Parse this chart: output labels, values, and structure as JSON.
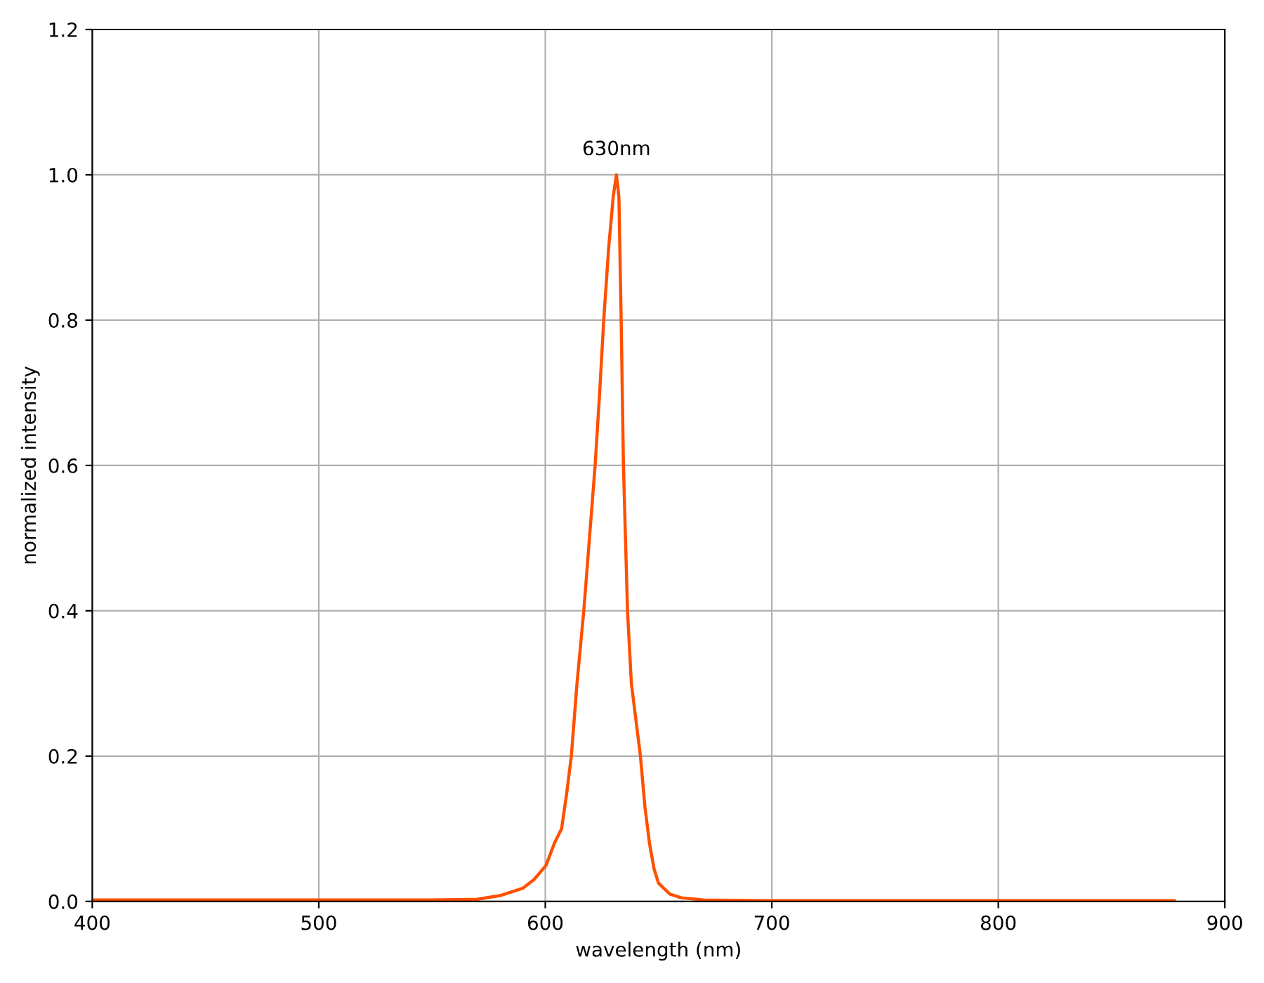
{
  "chart_data": {
    "type": "line",
    "xlabel": "wavelength (nm)",
    "ylabel": "normalized intensity",
    "x": [
      400,
      450,
      500,
      550,
      570,
      580,
      590,
      595,
      600.4,
      604,
      607.2,
      609.5,
      611.5,
      614,
      617,
      619.5,
      622,
      624,
      625.8,
      628,
      630,
      631.4,
      632.5,
      633.5,
      634.5,
      636.3,
      638,
      640,
      642,
      644,
      646,
      648,
      650,
      655,
      660,
      670,
      700,
      750,
      800,
      850,
      877.7
    ],
    "series": [
      {
        "color": "#ff5000",
        "values": [
          0.002,
          0.002,
          0.002,
          0.002,
          0.003,
          0.008,
          0.018,
          0.03,
          0.05,
          0.08,
          0.1,
          0.15,
          0.2,
          0.3,
          0.4,
          0.5,
          0.6,
          0.7,
          0.8,
          0.9,
          0.97,
          1.0,
          0.97,
          0.8,
          0.6,
          0.4,
          0.3,
          0.25,
          0.2,
          0.13,
          0.08,
          0.045,
          0.025,
          0.01,
          0.005,
          0.002,
          0.001,
          0.001,
          0.001,
          0.001,
          0.001
        ]
      }
    ],
    "annotations": [
      {
        "text": "630nm",
        "x": 631.4,
        "y": 1.0
      }
    ],
    "xlim": [
      400,
      900
    ],
    "ylim": [
      0,
      1.2
    ],
    "xticks": [
      400,
      500,
      600,
      700,
      800,
      900
    ],
    "yticks": [
      {
        "value": 0,
        "label": "0.0"
      },
      0.2,
      0.4,
      0.6,
      0.8,
      {
        "value": 1,
        "label": "1.0"
      },
      1.2
    ],
    "grid": true,
    "legend": false
  }
}
